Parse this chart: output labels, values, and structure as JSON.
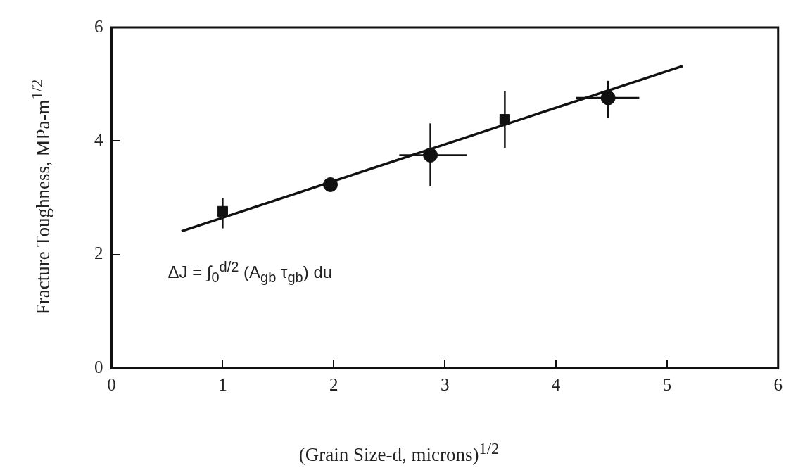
{
  "chart_data": {
    "type": "scatter",
    "xlabel": "(Grain Size-d, microns)$^{1/2}$",
    "ylabel": "Fracture Toughness, MPa-m$^{1/2}$",
    "xlim": [
      0,
      6
    ],
    "xticks": [
      0,
      1,
      2,
      3,
      4,
      5,
      6
    ],
    "ylim": [
      0,
      6
    ],
    "yticks": [
      0,
      2,
      4,
      6
    ],
    "grid": false,
    "legend": false,
    "annotations": [
      "ΔJ = ∫$_{0}$$^{d/2}$ (A$_{gb}$ τ$_{gb}$) du"
    ],
    "series": [
      {
        "marker": "square",
        "color": "#111111",
        "x": [
          1.0,
          3.54
        ],
        "values": [
          2.76,
          4.38
        ],
        "errors": [
          [
            2.46,
            3.0
          ],
          [
            3.88,
            4.88
          ]
        ]
      },
      {
        "marker": "circle",
        "color": "#111111",
        "x": [
          1.97,
          2.87,
          4.47
        ],
        "values": [
          3.23,
          3.75,
          4.76
        ],
        "errors": [
          null,
          [
            3.2,
            4.31
          ],
          [
            4.4,
            5.06
          ]
        ],
        "xerrors": [
          null,
          [
            2.59,
            3.2
          ],
          [
            4.18,
            4.75
          ]
        ]
      },
      {
        "type": "line",
        "marker": "none",
        "line_style": "solid",
        "color": "#111111",
        "x": [
          0.63,
          5.14
        ],
        "values": [
          2.41,
          5.32
        ]
      }
    ]
  }
}
